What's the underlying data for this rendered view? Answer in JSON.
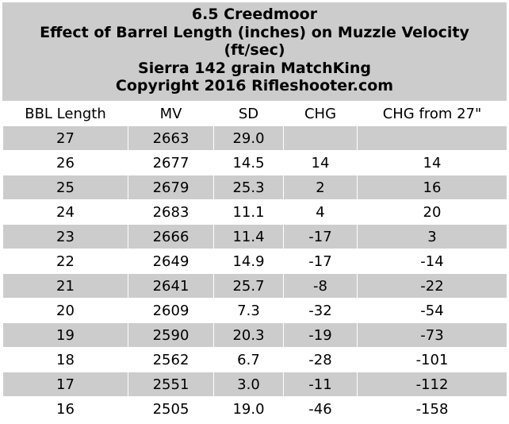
{
  "title_lines": [
    "6.5 Creedmoor",
    "Effect of Barrel Length (inches) on Muzzle Velocity",
    "(ft/sec)",
    "Sierra 142 grain MatchKing",
    "Copyright 2016 Rifleshooter.com"
  ],
  "headers": [
    "BBL Length",
    "MV",
    "SD",
    "CHG",
    "CHG from 27\""
  ],
  "rows": [
    [
      "27",
      "2663",
      "29.0",
      "",
      ""
    ],
    [
      "26",
      "2677",
      "14.5",
      "14",
      "14"
    ],
    [
      "25",
      "2679",
      "25.3",
      "2",
      "16"
    ],
    [
      "24",
      "2683",
      "11.1",
      "4",
      "20"
    ],
    [
      "23",
      "2666",
      "11.4",
      "-17",
      "3"
    ],
    [
      "22",
      "2649",
      "14.9",
      "-17",
      "-14"
    ],
    [
      "21",
      "2641",
      "25.7",
      "-8",
      "-22"
    ],
    [
      "20",
      "2609",
      "7.3",
      "-32",
      "-54"
    ],
    [
      "19",
      "2590",
      "20.3",
      "-19",
      "-73"
    ],
    [
      "18",
      "2562",
      "6.7",
      "-28",
      "-101"
    ],
    [
      "17",
      "2551",
      "3.0",
      "-11",
      "-112"
    ],
    [
      "16",
      "2505",
      "19.0",
      "-46",
      "-158"
    ]
  ],
  "colors": {
    "shaded": "#cccccc",
    "plain": "#ffffff",
    "text": "#000000"
  }
}
